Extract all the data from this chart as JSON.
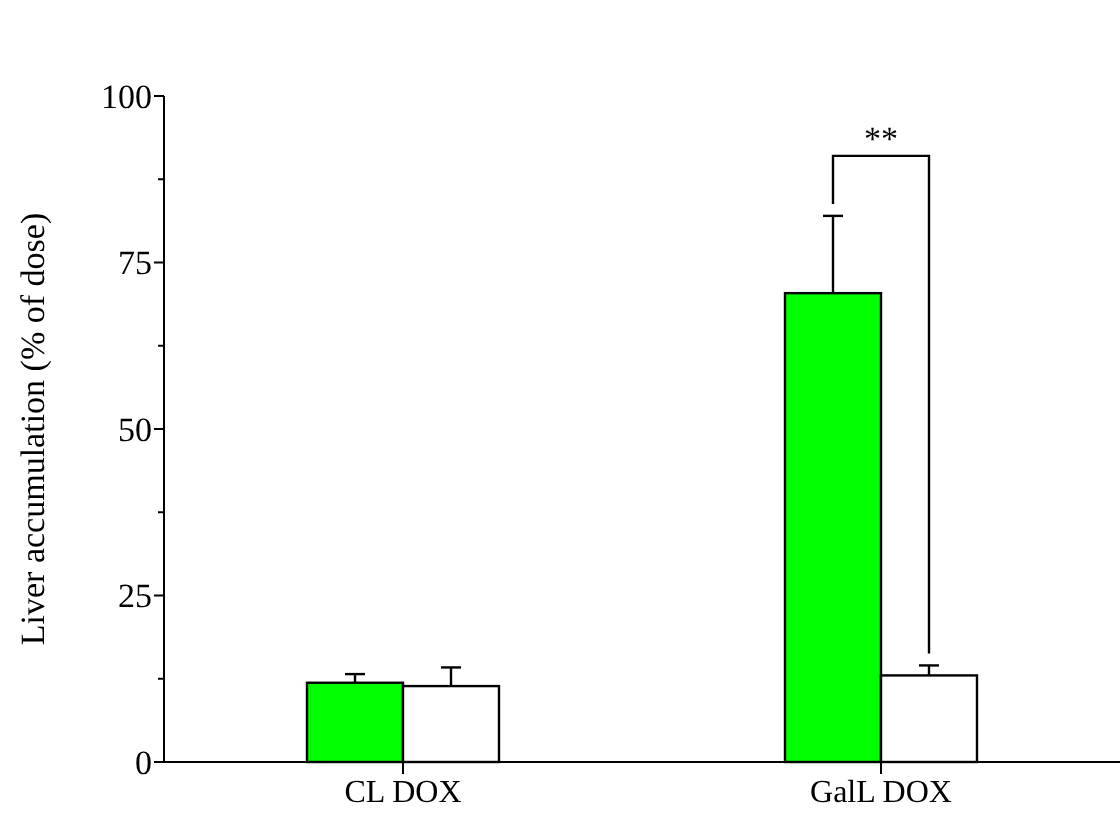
{
  "chart_data": {
    "type": "bar",
    "ylabel": "Liver accumulation (% of dose)",
    "categories": [
      "CL DOX",
      "GalL DOX"
    ],
    "series": [
      {
        "color": "#00ff00",
        "values": [
          11.9,
          70.4
        ],
        "errors": [
          [
            11.9,
            13.2
          ],
          [
            70.4,
            82
          ]
        ]
      },
      {
        "color": "#ffffff",
        "values": [
          11.4,
          13
        ],
        "errors": [
          [
            11.4,
            14.2
          ],
          [
            13,
            14.5
          ]
        ]
      }
    ],
    "ylim": [
      0,
      100
    ],
    "yticks": [
      0,
      {
        "value": 12.5,
        "label": null
      },
      25,
      {
        "value": 37.5,
        "label": null
      },
      50,
      {
        "value": 62.5,
        "label": null
      },
      75,
      {
        "value": 87.5,
        "label": null
      },
      100
    ],
    "annotations": [
      "**"
    ],
    "grid": false
  }
}
